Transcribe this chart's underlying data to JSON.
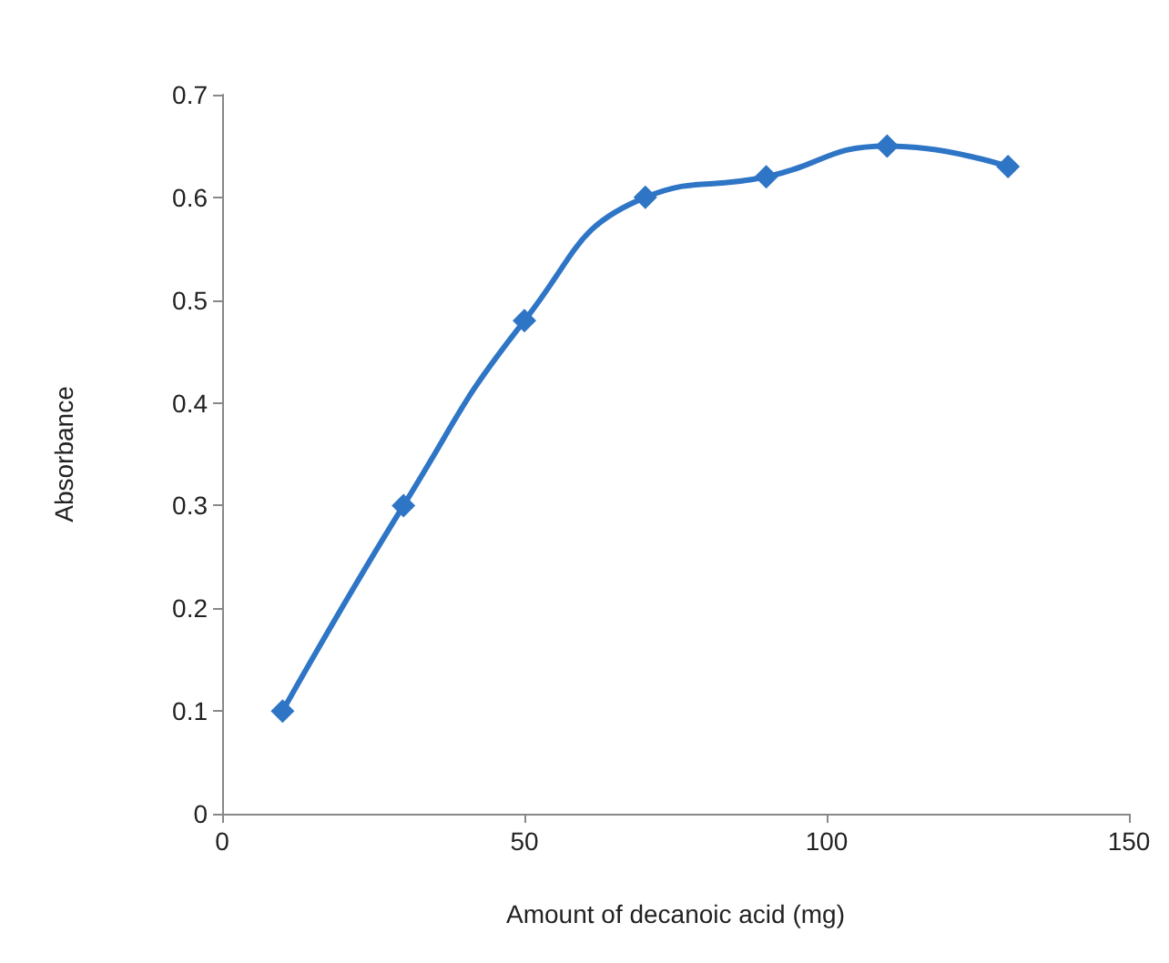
{
  "chart_data": {
    "type": "line",
    "xlabel": "Amount of decanoic acid (mg)",
    "ylabel": "Absorbance",
    "x": [
      10,
      30,
      50,
      70,
      90,
      110,
      130
    ],
    "series": [
      {
        "color": "#2e75c6",
        "values": [
          0.1,
          0.3,
          0.48,
          0.6,
          0.62,
          0.65,
          0.63
        ]
      }
    ],
    "xlim": [
      0,
      150
    ],
    "xticks": [
      0,
      50,
      100,
      150
    ],
    "ylim": [
      0,
      0.7
    ],
    "yticks": [
      0,
      0.1,
      0.2,
      0.3,
      0.4,
      0.5,
      0.6,
      0.7
    ],
    "grid": false,
    "marker": "diamond",
    "line_style": "solid"
  }
}
